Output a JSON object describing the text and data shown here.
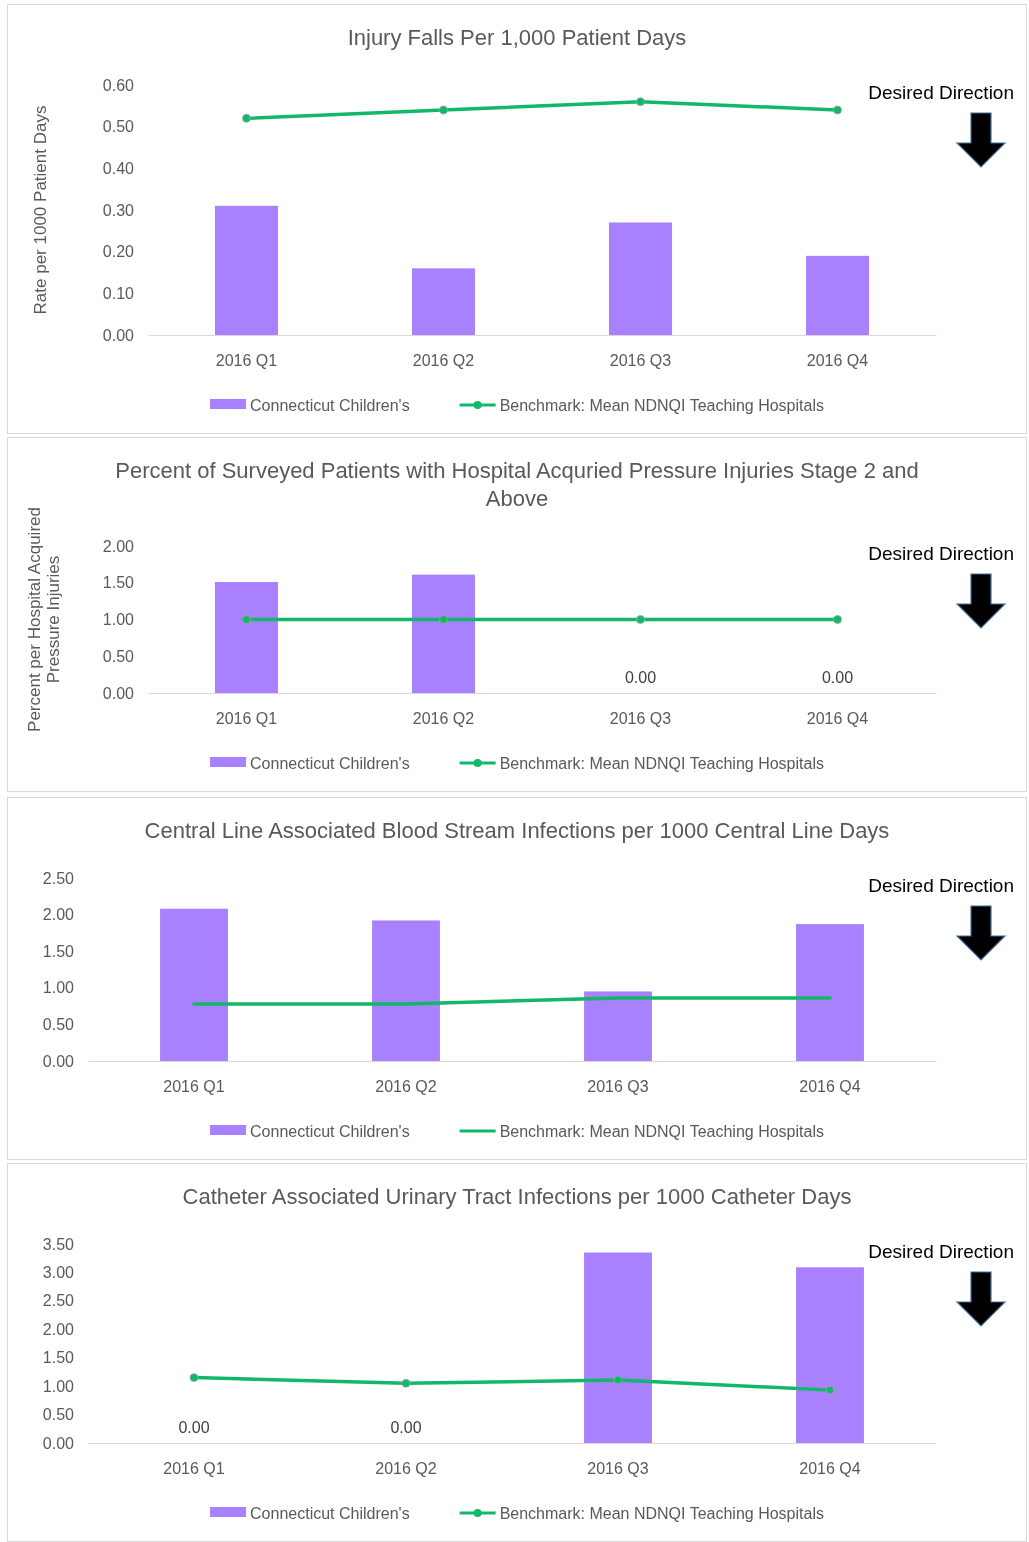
{
  "chart_data": [
    {
      "type": "bar",
      "title": "Injury Falls Per 1,000 Patient Days",
      "ylabel": "Rate per 1000 Patient Days",
      "categories": [
        "2016 Q1",
        "2016 Q2",
        "2016 Q3",
        "2016 Q4"
      ],
      "ylim": [
        0,
        0.6
      ],
      "yticks": [
        {
          "value": 0,
          "label": "0.00"
        },
        {
          "value": 0.1,
          "label": "0.10"
        },
        {
          "value": 0.2,
          "label": "0.20"
        },
        {
          "value": 0.3,
          "label": "0.30"
        },
        {
          "value": 0.4,
          "label": "0.40"
        },
        {
          "value": 0.5,
          "label": "0.50"
        },
        {
          "value": 0.6,
          "label": "0.60"
        }
      ],
      "legend": "bottom",
      "annotations": [
        "Desired Direction"
      ],
      "series": [
        {
          "name": "Connecticut Children's",
          "color": "#a980fd",
          "values": [
            0.31,
            0.16,
            0.27,
            0.19
          ]
        },
        {
          "name": "Benchmark: Mean NDNQI Teaching Hospitals",
          "type": "line",
          "color": "#12b76a",
          "marker": "circle",
          "values": [
            0.52,
            0.54,
            0.56,
            0.54
          ]
        }
      ]
    },
    {
      "type": "bar",
      "title": "Percent of Surveyed Patients with Hospital Acquried Pressure Injuries Stage 2 and Above",
      "ylabel": "Percent per Hospital Acquired Pressure Injuries",
      "categories": [
        "2016 Q1",
        "2016 Q2",
        "2016 Q3",
        "2016 Q4"
      ],
      "ylim": [
        0,
        2
      ],
      "yticks": [
        {
          "value": 0,
          "label": "0.00"
        },
        {
          "value": 0.5,
          "label": "0.50"
        },
        {
          "value": 1,
          "label": "1.00"
        },
        {
          "value": 1.5,
          "label": "1.50"
        },
        {
          "value": 2,
          "label": "2.00"
        }
      ],
      "legend": "bottom",
      "annotations": [
        "Desired Direction"
      ],
      "series": [
        {
          "name": "Connecticut Children's",
          "color": "#a980fd",
          "values": [
            1.51,
            1.61,
            0,
            0
          ],
          "value_labels": [
            null,
            null,
            "0.00",
            "0.00"
          ]
        },
        {
          "name": "Benchmark: Mean NDNQI Teaching Hospitals",
          "type": "line",
          "color": "#12b76a",
          "marker": "circle",
          "values": [
            1,
            1,
            1,
            1
          ]
        }
      ]
    },
    {
      "type": "bar",
      "title": "Central Line Associated Blood Stream Infections per 1000 Central Line Days",
      "categories": [
        "2016 Q1",
        "2016 Q2",
        "2016 Q3",
        "2016 Q4"
      ],
      "ylim": [
        0,
        2.5
      ],
      "yticks": [
        {
          "value": 0,
          "label": "0.00"
        },
        {
          "value": 0.5,
          "label": "0.50"
        },
        {
          "value": 1,
          "label": "1.00"
        },
        {
          "value": 1.5,
          "label": "1.50"
        },
        {
          "value": 2,
          "label": "2.00"
        },
        {
          "value": 2.5,
          "label": "2.50"
        }
      ],
      "legend": "bottom",
      "annotations": [
        "Desired Direction"
      ],
      "series": [
        {
          "name": "Connecticut Children's",
          "color": "#a980fd",
          "values": [
            2.08,
            1.92,
            0.95,
            1.87
          ]
        },
        {
          "name": "Benchmark: Mean NDNQI Teaching Hospitals",
          "type": "line",
          "color": "#12b76a",
          "marker": "none",
          "values": [
            0.78,
            0.78,
            0.86,
            0.86
          ]
        }
      ]
    },
    {
      "type": "bar",
      "title": "Catheter Associated Urinary Tract Infections per 1000 Catheter Days",
      "categories": [
        "2016 Q1",
        "2016 Q2",
        "2016 Q3",
        "2016 Q4"
      ],
      "ylim": [
        0,
        3.5
      ],
      "yticks": [
        {
          "value": 0,
          "label": "0.00"
        },
        {
          "value": 0.5,
          "label": "0.50"
        },
        {
          "value": 1,
          "label": "1.00"
        },
        {
          "value": 1.5,
          "label": "1.50"
        },
        {
          "value": 2,
          "label": "2.00"
        },
        {
          "value": 2.5,
          "label": "2.50"
        },
        {
          "value": 3,
          "label": "3.00"
        },
        {
          "value": 3.5,
          "label": "3.50"
        }
      ],
      "legend": "bottom",
      "annotations": [
        "Desired Direction"
      ],
      "series": [
        {
          "name": "Connecticut Children's",
          "color": "#a980fd",
          "values": [
            0,
            0,
            3.35,
            3.09
          ],
          "value_labels": [
            "0.00",
            "0.00",
            null,
            null
          ]
        },
        {
          "name": "Benchmark: Mean NDNQI Teaching Hospitals",
          "type": "line",
          "color": "#12b76a",
          "marker": "circle",
          "values": [
            1.15,
            1.05,
            1.11,
            0.93
          ]
        }
      ]
    }
  ]
}
